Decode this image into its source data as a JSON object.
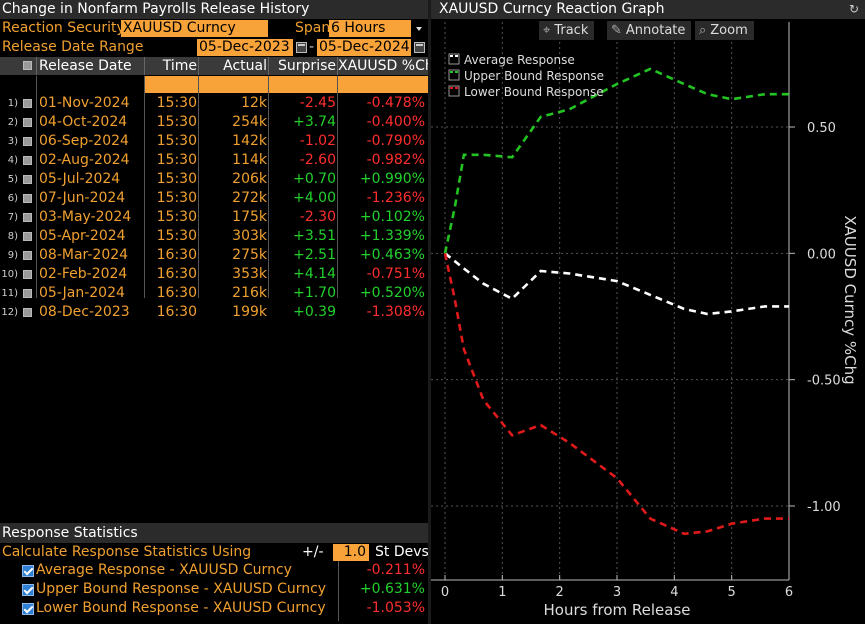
{
  "left": {
    "title": "Change in Nonfarm Payrolls Release History",
    "reaction_security_label": "Reaction Security",
    "reaction_security_value": "XAUUSD Curncy",
    "span_label": "Span",
    "span_value": "6 Hours",
    "release_date_range_label": "Release Date Range",
    "date_from": "05-Dec-2023",
    "date_sep": "-",
    "date_to": "05-Dec-2024",
    "columns": [
      "Release Date",
      "Time",
      "Actual",
      "Surprise",
      "XAUUSD %Chg"
    ],
    "rows": [
      {
        "n": "1)",
        "date": "01-Nov-2024",
        "time": "15:30",
        "actual": "12k",
        "surprise": "-2.45",
        "chg": "-0.478%"
      },
      {
        "n": "2)",
        "date": "04-Oct-2024",
        "time": "15:30",
        "actual": "254k",
        "surprise": "+3.74",
        "chg": "-0.400%"
      },
      {
        "n": "3)",
        "date": "06-Sep-2024",
        "time": "15:30",
        "actual": "142k",
        "surprise": "-1.02",
        "chg": "-0.790%"
      },
      {
        "n": "4)",
        "date": "02-Aug-2024",
        "time": "15:30",
        "actual": "114k",
        "surprise": "-2.60",
        "chg": "-0.982%"
      },
      {
        "n": "5)",
        "date": "05-Jul-2024",
        "time": "15:30",
        "actual": "206k",
        "surprise": "+0.70",
        "chg": "+0.990%"
      },
      {
        "n": "6)",
        "date": "07-Jun-2024",
        "time": "15:30",
        "actual": "272k",
        "surprise": "+4.00",
        "chg": "-1.236%"
      },
      {
        "n": "7)",
        "date": "03-May-2024",
        "time": "15:30",
        "actual": "175k",
        "surprise": "-2.30",
        "chg": "+0.102%"
      },
      {
        "n": "8)",
        "date": "05-Apr-2024",
        "time": "15:30",
        "actual": "303k",
        "surprise": "+3.51",
        "chg": "+1.339%"
      },
      {
        "n": "9)",
        "date": "08-Mar-2024",
        "time": "16:30",
        "actual": "275k",
        "surprise": "+2.51",
        "chg": "+0.463%"
      },
      {
        "n": "10)",
        "date": "02-Feb-2024",
        "time": "16:30",
        "actual": "353k",
        "surprise": "+4.14",
        "chg": "-0.751%"
      },
      {
        "n": "11)",
        "date": "05-Jan-2024",
        "time": "16:30",
        "actual": "216k",
        "surprise": "+1.70",
        "chg": "+0.520%"
      },
      {
        "n": "12)",
        "date": "08-Dec-2023",
        "time": "16:30",
        "actual": "199k",
        "surprise": "+0.39",
        "chg": "-1.308%"
      }
    ],
    "stats": {
      "title": "Response Statistics",
      "calc_label": "Calculate Response Statistics Using",
      "pm_label": "+/-",
      "stdev_value": "1.0",
      "stdev_unit": "St Devs",
      "items": [
        {
          "label": "Average Response - XAUUSD Curncy",
          "value": "-0.211%"
        },
        {
          "label": "Upper Bound Response - XAUUSD Curncy",
          "value": "+0.631%"
        },
        {
          "label": "Lower Bound Response - XAUUSD Curncy",
          "value": "-1.053%"
        }
      ]
    },
    "colors": {
      "orange": "#f0a030",
      "field": "#f7a33a",
      "positive": "#22d12b",
      "negative": "#ff2e2e"
    }
  },
  "right": {
    "title": "XAUUSD Curncy Reaction Graph",
    "tools": [
      {
        "icon": "crosshair-icon",
        "label": "Track"
      },
      {
        "icon": "pencil-icon",
        "label": "Annotate"
      },
      {
        "icon": "magnifier-icon",
        "label": "Zoom"
      }
    ],
    "chart_data": {
      "type": "line",
      "xlabel": "Hours from Release",
      "ylabel": "XAUUSD Curncy %Chg",
      "xlim": [
        0,
        6
      ],
      "ylim": [
        -1.25,
        0.8
      ],
      "x_ticks": [
        "0",
        "1",
        "2",
        "3",
        "4",
        "5",
        "6"
      ],
      "y_ticks": [
        "0.50",
        "0.00",
        "-0.50",
        "-1.00"
      ],
      "y_tick_values": [
        0.5,
        0.0,
        -0.5,
        -1.0
      ],
      "legend_position": "top-left",
      "series": [
        {
          "name": "Average Response",
          "color": "#ffffff",
          "x": [
            0,
            0.33,
            0.67,
            1.17,
            1.67,
            2.17,
            3.0,
            4.17,
            4.58,
            5.0,
            5.58,
            6.0
          ],
          "y": [
            0.0,
            -0.06,
            -0.12,
            -0.18,
            -0.07,
            -0.08,
            -0.11,
            -0.22,
            -0.24,
            -0.23,
            -0.21,
            -0.21
          ]
        },
        {
          "name": "Upper Bound Response",
          "color": "#22c322",
          "x": [
            0,
            0.17,
            0.33,
            0.67,
            1.17,
            1.67,
            2.17,
            3.0,
            3.58,
            4.17,
            4.58,
            5.0,
            5.58,
            6.0
          ],
          "y": [
            0.0,
            0.18,
            0.39,
            0.39,
            0.38,
            0.54,
            0.57,
            0.67,
            0.73,
            0.67,
            0.63,
            0.61,
            0.63,
            0.63
          ]
        },
        {
          "name": "Lower Bound Response",
          "color": "#e01a1a",
          "x": [
            0,
            0.17,
            0.33,
            0.67,
            1.17,
            1.67,
            2.17,
            3.0,
            3.58,
            4.17,
            4.58,
            5.0,
            5.58,
            6.0
          ],
          "y": [
            0.0,
            -0.18,
            -0.38,
            -0.58,
            -0.72,
            -0.68,
            -0.75,
            -0.89,
            -1.05,
            -1.11,
            -1.1,
            -1.07,
            -1.05,
            -1.05
          ]
        }
      ]
    }
  }
}
